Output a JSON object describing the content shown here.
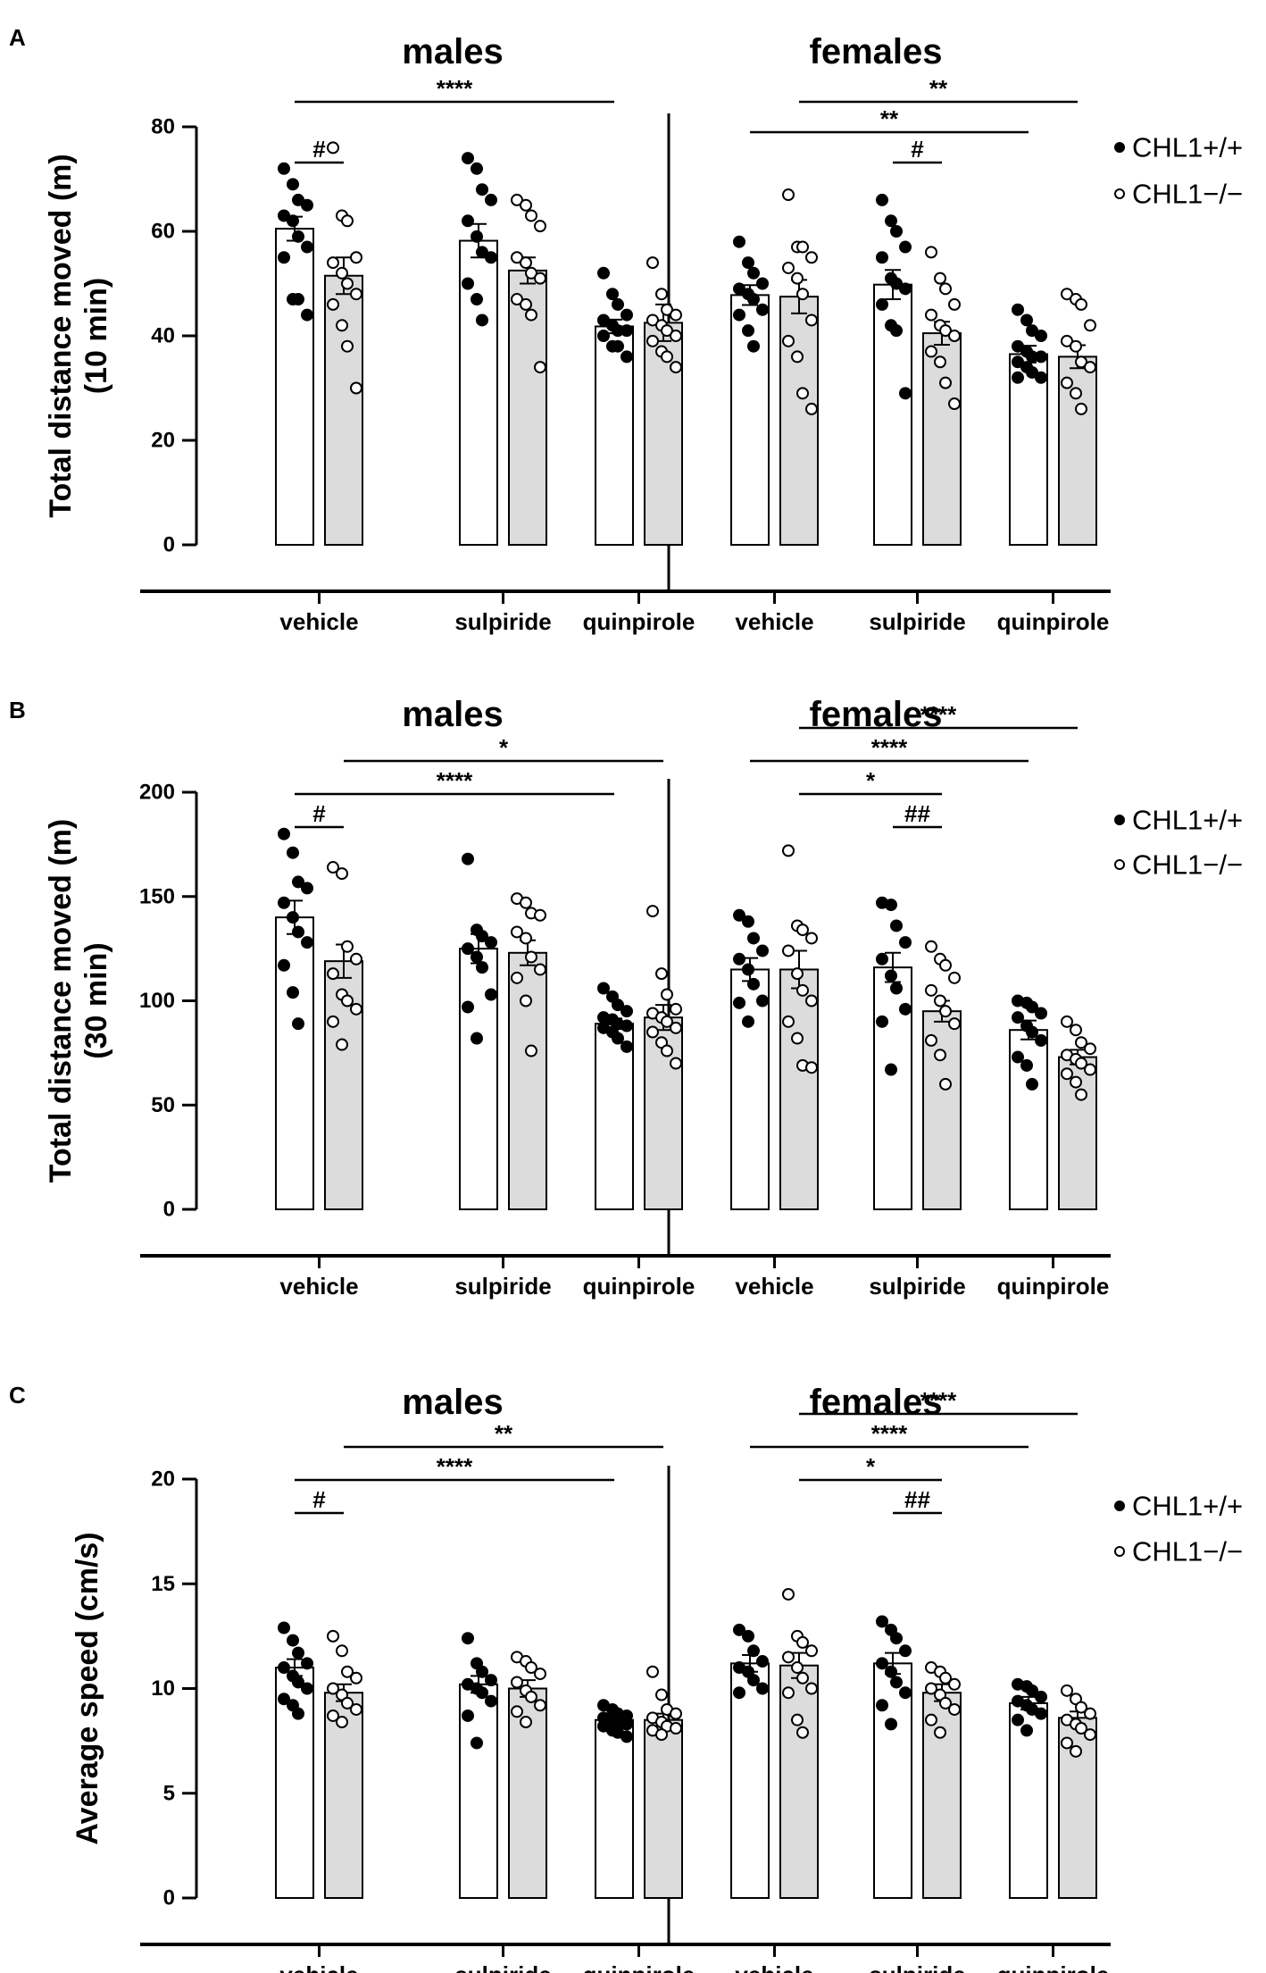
{
  "colors": {
    "wt_bar": "#ffffff",
    "ko_bar": "#dcdcdc",
    "ink": "#000000"
  },
  "legend": {
    "wt": "CHL1+/+",
    "ko": "CHL1−/−"
  },
  "chart_data": [
    {
      "type": "bar",
      "panel": "A",
      "ylabel_line1": "Total distance moved (m)",
      "ylabel_line2": "(10 min)",
      "ylim": [
        0,
        80
      ],
      "yticks": [
        0,
        20,
        40,
        60,
        80
      ],
      "groups": [
        {
          "title": "males",
          "categories": [
            "vehicle",
            "sulpiride",
            "quinpirole"
          ]
        },
        {
          "title": "females",
          "categories": [
            "vehicle",
            "sulpiride",
            "quinpirole"
          ]
        }
      ],
      "series": [
        {
          "name": "CHL1+/+",
          "values": [
            60.5,
            58.2,
            41.8,
            47.8,
            49.8,
            36.5
          ],
          "sem": [
            2.3,
            3.2,
            1.3,
            1.9,
            2.8,
            1.6
          ],
          "points": [
            [
              72,
              69,
              66,
              65,
              63,
              62,
              59,
              57,
              55,
              47,
              47,
              44
            ],
            [
              74,
              72,
              68,
              66,
              62,
              59,
              56,
              55,
              50,
              47,
              43
            ],
            [
              52,
              48,
              46,
              44,
              43,
              42,
              41,
              41,
              40,
              38,
              38,
              36
            ],
            [
              58,
              54,
              52,
              50,
              49,
              48,
              47,
              45,
              44,
              41,
              38
            ],
            [
              66,
              62,
              60,
              57,
              55,
              51,
              50,
              49,
              46,
              42,
              41,
              29
            ],
            [
              45,
              43,
              41,
              40,
              38,
              37,
              36,
              36,
              35,
              34,
              33,
              32,
              32
            ]
          ]
        },
        {
          "name": "CHL1−/−",
          "values": [
            51.5,
            52.5,
            42.5,
            47.5,
            40.5,
            36.0
          ],
          "sem": [
            3.5,
            2.5,
            3.5,
            3.2,
            2.2,
            2.2
          ],
          "points": [
            [
              76,
              63,
              62,
              55,
              54,
              52,
              50,
              48,
              46,
              42,
              38,
              30
            ],
            [
              66,
              65,
              63,
              61,
              55,
              54,
              52,
              51,
              47,
              46,
              44,
              34
            ],
            [
              54,
              48,
              45,
              44,
              43,
              42,
              41,
              40,
              39,
              37,
              36,
              34
            ],
            [
              67,
              57,
              57,
              55,
              53,
              51,
              48,
              43,
              39,
              36,
              29,
              26
            ],
            [
              56,
              51,
              49,
              46,
              44,
              42,
              41,
              40,
              37,
              35,
              31,
              27
            ],
            [
              48,
              47,
              46,
              42,
              39,
              38,
              35,
              34,
              31,
              29,
              26
            ]
          ]
        }
      ],
      "annotations": [
        {
          "label": "#",
          "from": "males.vehicle.wt",
          "to": "males.vehicle.ko",
          "level": 0
        },
        {
          "label": "****",
          "from": "males.vehicle.wt",
          "to": "males.quinpirole.wt",
          "level": 2
        },
        {
          "label": "#",
          "from": "females.sulpiride.wt",
          "to": "females.sulpiride.ko",
          "level": 0
        },
        {
          "label": "**",
          "from": "females.vehicle.wt",
          "to": "females.quinpirole.wt",
          "level": 1
        },
        {
          "label": "**",
          "from": "females.vehicle.ko",
          "to": "females.quinpirole.ko",
          "level": 2
        }
      ]
    },
    {
      "type": "bar",
      "panel": "B",
      "ylabel_line1": "Total distance moved (m)",
      "ylabel_line2": "(30 min)",
      "ylim": [
        0,
        200
      ],
      "yticks": [
        0,
        50,
        100,
        150,
        200
      ],
      "groups": [
        {
          "title": "males",
          "categories": [
            "vehicle",
            "sulpiride",
            "quinpirole"
          ]
        },
        {
          "title": "females",
          "categories": [
            "vehicle",
            "sulpiride",
            "quinpirole"
          ]
        }
      ],
      "series": [
        {
          "name": "CHL1+/+",
          "values": [
            140,
            125,
            89,
            115,
            116,
            86
          ],
          "sem": [
            8,
            7,
            2.5,
            5.5,
            7,
            4.5
          ],
          "points": [
            [
              180,
              171,
              157,
              154,
              147,
              140,
              133,
              128,
              117,
              104,
              89
            ],
            [
              168,
              134,
              131,
              128,
              125,
              121,
              116,
              103,
              97,
              82
            ],
            [
              106,
              102,
              98,
              95,
              92,
              91,
              89,
              88,
              87,
              85,
              82,
              78
            ],
            [
              141,
              138,
              130,
              124,
              120,
              115,
              108,
              100,
              99,
              90
            ],
            [
              147,
              146,
              136,
              128,
              120,
              112,
              106,
              96,
              90,
              67
            ],
            [
              100,
              99,
              97,
              94,
              92,
              88,
              85,
              81,
              73,
              69,
              60
            ]
          ]
        },
        {
          "name": "CHL1−/−",
          "values": [
            119,
            123,
            92,
            115,
            95,
            73
          ],
          "sem": [
            8,
            6,
            6,
            9,
            5,
            3.5
          ],
          "points": [
            [
              164,
              161,
              126,
              120,
              113,
              103,
              100,
              96,
              90,
              79
            ],
            [
              149,
              147,
              142,
              141,
              133,
              130,
              121,
              115,
              111,
              100,
              76
            ],
            [
              143,
              113,
              103,
              96,
              94,
              92,
              90,
              87,
              85,
              80,
              76,
              70
            ],
            [
              172,
              136,
              134,
              130,
              124,
              113,
              105,
              100,
              90,
              82,
              69,
              68
            ],
            [
              126,
              120,
              117,
              111,
              105,
              100,
              95,
              89,
              81,
              74,
              60
            ],
            [
              90,
              86,
              80,
              77,
              74,
              72,
              70,
              67,
              65,
              61,
              55
            ]
          ]
        }
      ],
      "annotations": [
        {
          "label": "#",
          "from": "males.vehicle.wt",
          "to": "males.vehicle.ko",
          "level": 0
        },
        {
          "label": "****",
          "from": "males.vehicle.wt",
          "to": "males.quinpirole.wt",
          "level": 1
        },
        {
          "label": "*",
          "from": "males.vehicle.ko",
          "to": "males.quinpirole.ko",
          "level": 2
        },
        {
          "label": "##",
          "from": "females.sulpiride.wt",
          "to": "females.sulpiride.ko",
          "level": 0
        },
        {
          "label": "*",
          "from": "females.vehicle.ko",
          "to": "females.sulpiride.ko",
          "level": 1
        },
        {
          "label": "****",
          "from": "females.vehicle.wt",
          "to": "females.quinpirole.wt",
          "level": 2
        },
        {
          "label": "****",
          "from": "females.vehicle.ko",
          "to": "females.quinpirole.ko",
          "level": 3
        }
      ]
    },
    {
      "type": "bar",
      "panel": "C",
      "ylabel_line1": "Average speed (cm/s)",
      "ylabel_line2": "",
      "ylim": [
        0,
        20
      ],
      "yticks": [
        0,
        5,
        10,
        15,
        20
      ],
      "groups": [
        {
          "title": "males",
          "categories": [
            "vehicle",
            "sulpiride",
            "quinpirole"
          ]
        },
        {
          "title": "females",
          "categories": [
            "vehicle",
            "sulpiride",
            "quinpirole"
          ]
        }
      ],
      "series": [
        {
          "name": "CHL1+/+",
          "values": [
            11.0,
            10.2,
            8.5,
            11.2,
            11.2,
            9.3
          ],
          "sem": [
            0.4,
            0.4,
            0.2,
            0.4,
            0.5,
            0.3
          ],
          "points": [
            [
              12.9,
              12.3,
              11.7,
              11.2,
              11.0,
              10.6,
              10.3,
              10.0,
              9.5,
              9.2,
              8.8
            ],
            [
              12.4,
              11.2,
              10.8,
              10.4,
              10.2,
              10.0,
              9.8,
              9.4,
              8.7,
              7.4
            ],
            [
              9.2,
              9.0,
              8.8,
              8.7,
              8.6,
              8.5,
              8.4,
              8.3,
              8.2,
              8.0,
              7.9,
              7.7
            ],
            [
              12.8,
              12.5,
              11.8,
              11.3,
              11.0,
              10.8,
              10.4,
              10.0,
              9.8
            ],
            [
              13.2,
              12.8,
              12.4,
              11.8,
              11.2,
              10.8,
              10.3,
              9.8,
              9.2,
              8.3
            ],
            [
              10.2,
              10.1,
              9.9,
              9.6,
              9.4,
              9.2,
              9.0,
              8.8,
              8.5,
              8.0
            ]
          ]
        },
        {
          "name": "CHL1−/−",
          "values": [
            9.8,
            10.0,
            8.5,
            11.1,
            9.8,
            8.6
          ],
          "sem": [
            0.4,
            0.4,
            0.3,
            0.6,
            0.4,
            0.3
          ],
          "points": [
            [
              12.5,
              11.8,
              10.8,
              10.5,
              10.0,
              9.7,
              9.3,
              9.0,
              8.7,
              8.4
            ],
            [
              11.5,
              11.3,
              11.0,
              10.7,
              10.3,
              9.9,
              9.6,
              9.2,
              8.9,
              8.4
            ],
            [
              10.8,
              9.7,
              9.0,
              8.8,
              8.6,
              8.4,
              8.2,
              8.1,
              8.0,
              7.8
            ],
            [
              14.5,
              12.5,
              12.2,
              11.8,
              11.5,
              11.0,
              10.5,
              10.0,
              9.8,
              8.5,
              7.9
            ],
            [
              11.0,
              10.8,
              10.5,
              10.2,
              10.0,
              9.7,
              9.3,
              9.0,
              8.5,
              7.9
            ],
            [
              9.9,
              9.5,
              9.1,
              8.8,
              8.5,
              8.3,
              8.1,
              7.8,
              7.4,
              7.0
            ]
          ]
        }
      ],
      "annotations": [
        {
          "label": "#",
          "from": "males.vehicle.wt",
          "to": "males.vehicle.ko",
          "level": 0
        },
        {
          "label": "****",
          "from": "males.vehicle.wt",
          "to": "males.quinpirole.wt",
          "level": 1
        },
        {
          "label": "**",
          "from": "males.vehicle.ko",
          "to": "males.quinpirole.ko",
          "level": 2
        },
        {
          "label": "##",
          "from": "females.sulpiride.wt",
          "to": "females.sulpiride.ko",
          "level": 0
        },
        {
          "label": "*",
          "from": "females.vehicle.ko",
          "to": "females.sulpiride.ko",
          "level": 1
        },
        {
          "label": "****",
          "from": "females.vehicle.wt",
          "to": "females.quinpirole.wt",
          "level": 2
        },
        {
          "label": "****",
          "from": "females.vehicle.ko",
          "to": "females.quinpirole.ko",
          "level": 3
        }
      ]
    }
  ]
}
